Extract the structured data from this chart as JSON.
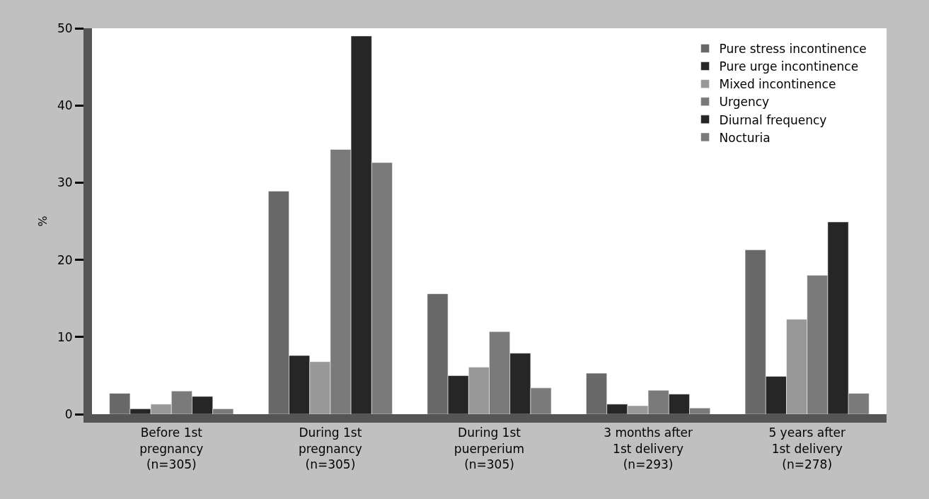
{
  "chart_data": {
    "type": "bar",
    "ylabel": "%",
    "categories": [
      "Before 1st\npregnancy\n(n=305)",
      "During 1st\npregnancy\n(n=305)",
      "During 1st\npuerperium\n(n=305)",
      "3 months after\n1st delivery\n(n=293)",
      "5 years after\n1st delivery\n(n=278)"
    ],
    "series": [
      {
        "name": "Pure stress incontinence",
        "color": "#686868",
        "values": [
          2.7,
          28.9,
          15.6,
          5.3,
          21.3
        ]
      },
      {
        "name": "Pure urge incontinence",
        "color": "#262626",
        "values": [
          0.7,
          7.6,
          5.0,
          1.3,
          4.9
        ]
      },
      {
        "name": "Mixed incontinence",
        "color": "#989898",
        "values": [
          1.3,
          6.8,
          6.1,
          1.1,
          12.3
        ]
      },
      {
        "name": "Urgency",
        "color": "#7a7a7a",
        "values": [
          3.0,
          34.3,
          10.7,
          3.1,
          18.0
        ]
      },
      {
        "name": "Diurnal frequency",
        "color": "#262626",
        "values": [
          2.3,
          49.0,
          7.9,
          2.6,
          24.9
        ]
      },
      {
        "name": "Nocturia",
        "color": "#7a7a7a",
        "values": [
          0.7,
          32.6,
          3.4,
          0.8,
          2.7
        ]
      }
    ],
    "ylim": [
      0,
      50
    ],
    "yticks": [
      0,
      10,
      20,
      30,
      40,
      50
    ],
    "legend": "top right"
  }
}
